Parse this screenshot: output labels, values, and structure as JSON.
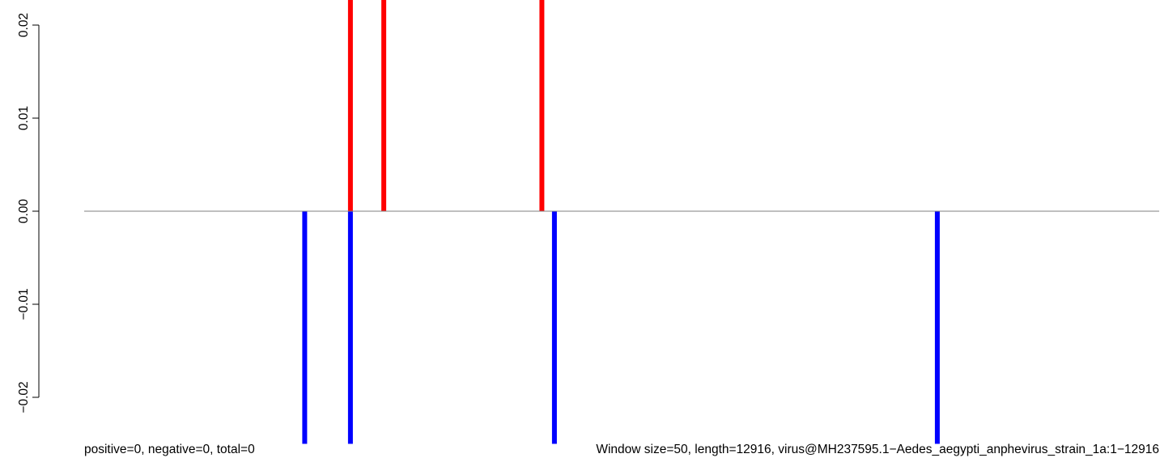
{
  "chart_data": {
    "type": "bar",
    "y_axis": {
      "ylim": [
        -0.025,
        0.025
      ],
      "ticks": [
        -0.02,
        -0.01,
        0.0,
        0.01,
        0.02
      ],
      "tick_labels": [
        "−0.02",
        "−0.01",
        "0.00",
        "0.01",
        "0.02"
      ]
    },
    "x_range": [
      1,
      12916
    ],
    "series": [
      {
        "color": "#ff0000",
        "x": [
          3200,
          3600,
          5500
        ],
        "values": [
          0.025,
          0.025,
          0.025
        ]
      },
      {
        "color": "#0000ff",
        "x": [
          2650,
          3200,
          5650,
          10250
        ],
        "values": [
          -0.025,
          -0.025,
          -0.025,
          -0.025
        ]
      }
    ],
    "grid": false,
    "baseline_color": "#808080"
  },
  "footer": {
    "left": "positive=0, negative=0, total=0",
    "right": "Window size=50, length=12916, virus@MH237595.1−Aedes_aegypti_anphevirus_strain_1a:1−12916"
  }
}
